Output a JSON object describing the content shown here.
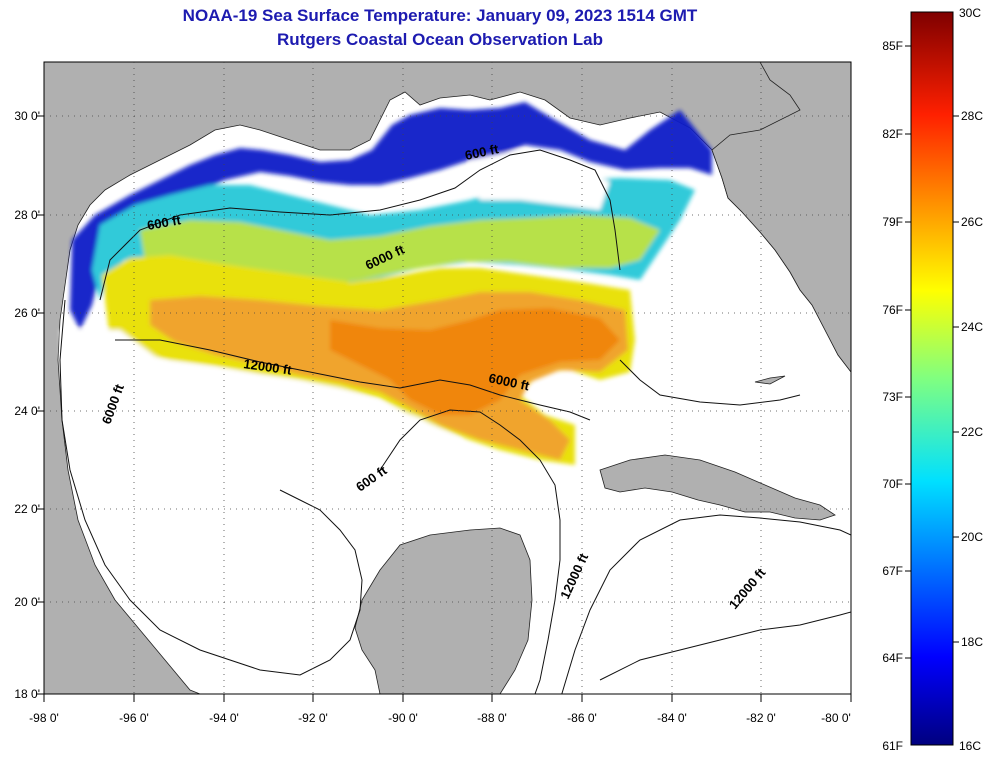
{
  "title": "NOAA-19 Sea Surface Temperature:  January 09, 2023 1514 GMT",
  "subtitle": "Rutgers Coastal Ocean Observation Lab",
  "lat_labels": [
    "30 0'",
    "28 0'",
    "26 0'",
    "24 0'",
    "22 0'",
    "20 0'",
    "18 0'"
  ],
  "lon_labels": [
    "-98 0'",
    "-96 0'",
    "-94 0'",
    "-92 0'",
    "-90 0'",
    "-88 0'",
    "-86 0'",
    "-84 0'",
    "-82 0'",
    "-80 0'"
  ],
  "contour_labels": [
    "600 ft",
    "6000 ft",
    "12000 ft",
    "6000 ft",
    "6000 ft",
    "600 ft",
    "12000 ft",
    "12000 ft",
    "600 ft"
  ],
  "colorbar": {
    "min_c": "16C",
    "max_c": "30C",
    "c_labels": [
      "28C",
      "26C",
      "24C",
      "22C",
      "20C",
      "18C"
    ],
    "f_labels": [
      "85F",
      "82F",
      "79F",
      "76F",
      "73F",
      "70F",
      "67F",
      "64F",
      "61F"
    ]
  },
  "colors": {
    "land": "#b0b0b0",
    "title": "#1d1bb0",
    "cold": "#00008b",
    "warm": "#f08000"
  }
}
